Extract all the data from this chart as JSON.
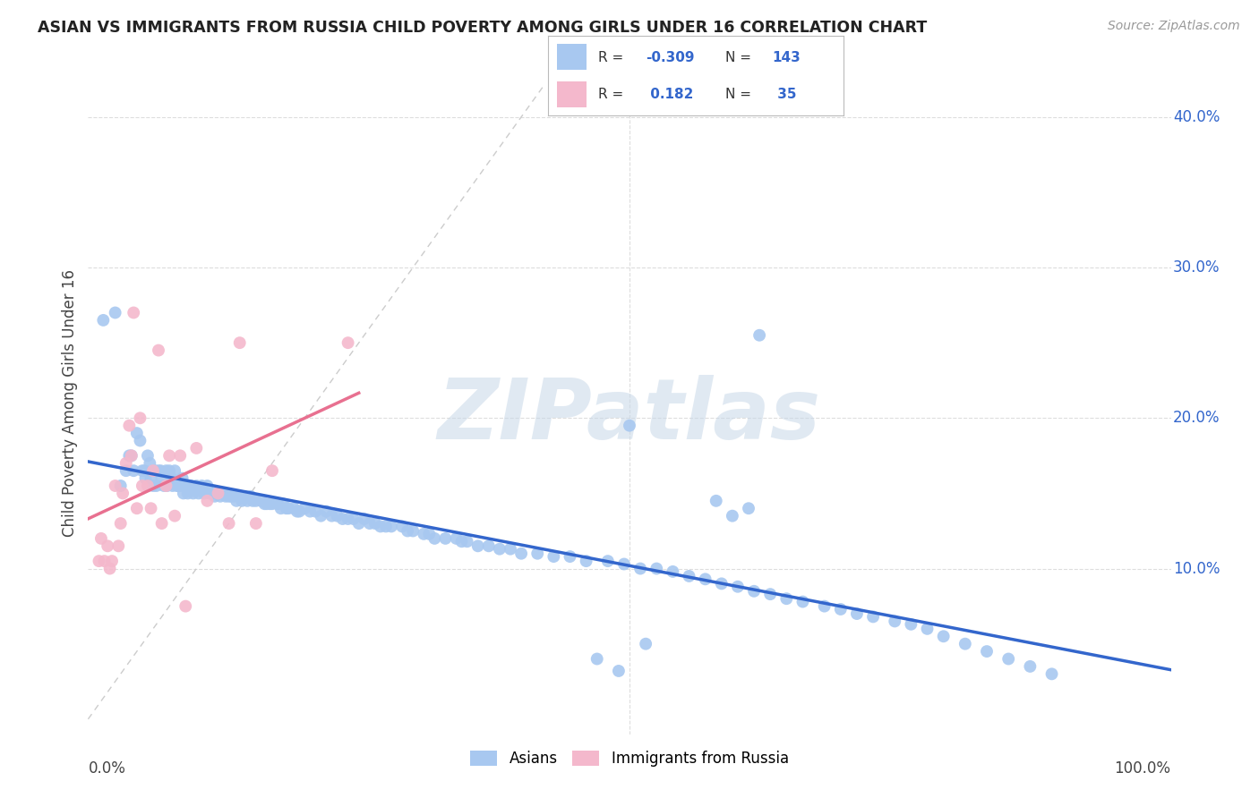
{
  "title": "ASIAN VS IMMIGRANTS FROM RUSSIA CHILD POVERTY AMONG GIRLS UNDER 16 CORRELATION CHART",
  "source": "Source: ZipAtlas.com",
  "ylabel": "Child Poverty Among Girls Under 16",
  "xlim": [
    0.0,
    1.0
  ],
  "ylim": [
    -0.01,
    0.43
  ],
  "background_color": "#ffffff",
  "grid_color": "#dddddd",
  "asian_color": "#a8c8f0",
  "russia_color": "#f4b8cc",
  "asian_line_color": "#3366cc",
  "russia_line_color": "#e87090",
  "diagonal_color": "#cccccc",
  "yticks": [
    0.0,
    0.1,
    0.2,
    0.3,
    0.4
  ],
  "ytick_labels": [
    "",
    "10.0%",
    "20.0%",
    "30.0%",
    "40.0%"
  ],
  "asian_x": [
    0.014,
    0.025,
    0.03,
    0.035,
    0.038,
    0.04,
    0.042,
    0.045,
    0.048,
    0.05,
    0.052,
    0.053,
    0.055,
    0.057,
    0.058,
    0.06,
    0.062,
    0.063,
    0.065,
    0.067,
    0.068,
    0.07,
    0.072,
    0.073,
    0.075,
    0.077,
    0.078,
    0.08,
    0.082,
    0.083,
    0.085,
    0.087,
    0.088,
    0.09,
    0.092,
    0.095,
    0.097,
    0.1,
    0.102,
    0.105,
    0.107,
    0.11,
    0.112,
    0.115,
    0.117,
    0.12,
    0.122,
    0.125,
    0.127,
    0.13,
    0.132,
    0.135,
    0.137,
    0.14,
    0.142,
    0.145,
    0.147,
    0.15,
    0.152,
    0.155,
    0.16,
    0.163,
    0.165,
    0.168,
    0.17,
    0.175,
    0.178,
    0.18,
    0.183,
    0.185,
    0.19,
    0.193,
    0.195,
    0.2,
    0.205,
    0.21,
    0.215,
    0.22,
    0.225,
    0.23,
    0.235,
    0.24,
    0.245,
    0.25,
    0.255,
    0.26,
    0.265,
    0.27,
    0.275,
    0.28,
    0.29,
    0.295,
    0.3,
    0.31,
    0.315,
    0.32,
    0.33,
    0.34,
    0.345,
    0.35,
    0.36,
    0.37,
    0.38,
    0.39,
    0.4,
    0.415,
    0.43,
    0.445,
    0.46,
    0.48,
    0.495,
    0.51,
    0.525,
    0.54,
    0.555,
    0.57,
    0.585,
    0.6,
    0.615,
    0.63,
    0.645,
    0.66,
    0.68,
    0.695,
    0.71,
    0.725,
    0.745,
    0.76,
    0.775,
    0.79,
    0.81,
    0.83,
    0.85,
    0.87,
    0.89,
    0.5,
    0.62,
    0.49,
    0.515,
    0.47,
    0.58,
    0.61,
    0.595
  ],
  "asian_y": [
    0.265,
    0.27,
    0.155,
    0.165,
    0.175,
    0.175,
    0.165,
    0.19,
    0.185,
    0.165,
    0.165,
    0.16,
    0.175,
    0.17,
    0.16,
    0.155,
    0.165,
    0.155,
    0.165,
    0.165,
    0.16,
    0.155,
    0.165,
    0.155,
    0.165,
    0.16,
    0.155,
    0.165,
    0.155,
    0.155,
    0.155,
    0.16,
    0.15,
    0.155,
    0.15,
    0.155,
    0.15,
    0.155,
    0.15,
    0.155,
    0.15,
    0.155,
    0.15,
    0.15,
    0.148,
    0.15,
    0.148,
    0.15,
    0.148,
    0.148,
    0.148,
    0.148,
    0.145,
    0.148,
    0.145,
    0.148,
    0.145,
    0.148,
    0.145,
    0.145,
    0.145,
    0.143,
    0.143,
    0.143,
    0.143,
    0.143,
    0.14,
    0.143,
    0.14,
    0.14,
    0.14,
    0.138,
    0.138,
    0.14,
    0.138,
    0.138,
    0.135,
    0.138,
    0.135,
    0.135,
    0.133,
    0.133,
    0.133,
    0.13,
    0.133,
    0.13,
    0.13,
    0.128,
    0.128,
    0.128,
    0.128,
    0.125,
    0.125,
    0.123,
    0.123,
    0.12,
    0.12,
    0.12,
    0.118,
    0.118,
    0.115,
    0.115,
    0.113,
    0.113,
    0.11,
    0.11,
    0.108,
    0.108,
    0.105,
    0.105,
    0.103,
    0.1,
    0.1,
    0.098,
    0.095,
    0.093,
    0.09,
    0.088,
    0.085,
    0.083,
    0.08,
    0.078,
    0.075,
    0.073,
    0.07,
    0.068,
    0.065,
    0.063,
    0.06,
    0.055,
    0.05,
    0.045,
    0.04,
    0.035,
    0.03,
    0.195,
    0.255,
    0.032,
    0.05,
    0.04,
    0.145,
    0.14,
    0.135
  ],
  "russia_x": [
    0.01,
    0.012,
    0.015,
    0.018,
    0.02,
    0.022,
    0.025,
    0.028,
    0.03,
    0.032,
    0.035,
    0.038,
    0.04,
    0.042,
    0.045,
    0.048,
    0.05,
    0.055,
    0.058,
    0.06,
    0.065,
    0.068,
    0.072,
    0.075,
    0.08,
    0.085,
    0.09,
    0.1,
    0.11,
    0.12,
    0.13,
    0.14,
    0.155,
    0.17,
    0.24
  ],
  "russia_y": [
    0.105,
    0.12,
    0.105,
    0.115,
    0.1,
    0.105,
    0.155,
    0.115,
    0.13,
    0.15,
    0.17,
    0.195,
    0.175,
    0.27,
    0.14,
    0.2,
    0.155,
    0.155,
    0.14,
    0.165,
    0.245,
    0.13,
    0.155,
    0.175,
    0.135,
    0.175,
    0.075,
    0.18,
    0.145,
    0.15,
    0.13,
    0.25,
    0.13,
    0.165,
    0.25
  ],
  "legend_R_asian": "-0.309",
  "legend_N_asian": "143",
  "legend_R_russia": "0.182",
  "legend_N_russia": "35",
  "watermark_text": "ZIPatlas",
  "watermark_color": "#c8d8e8",
  "label_color_blue": "#3366cc",
  "label_color_dark": "#444444"
}
